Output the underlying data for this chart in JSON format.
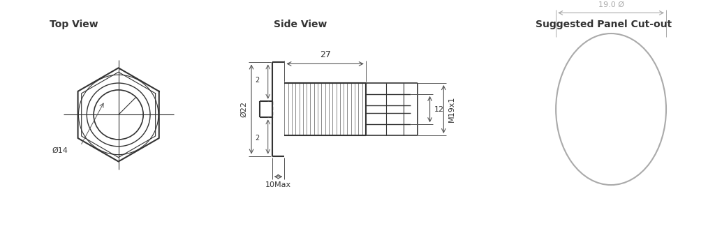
{
  "bg_color": "#ffffff",
  "line_color": "#333333",
  "dim_color": "#555555",
  "gray_color": "#aaaaaa",
  "title_top_view": "Top View",
  "title_side_view": "Side View",
  "title_panel": "Suggested Panel Cut-out",
  "dim_27": "27",
  "dim_22": "Ø22",
  "dim_14": "Ø14",
  "dim_2top": "2",
  "dim_2bot": "2",
  "dim_12": "12",
  "dim_m19x1": "M19x1",
  "dim_10max": "10Max",
  "dim_19": "19.0 Ø"
}
